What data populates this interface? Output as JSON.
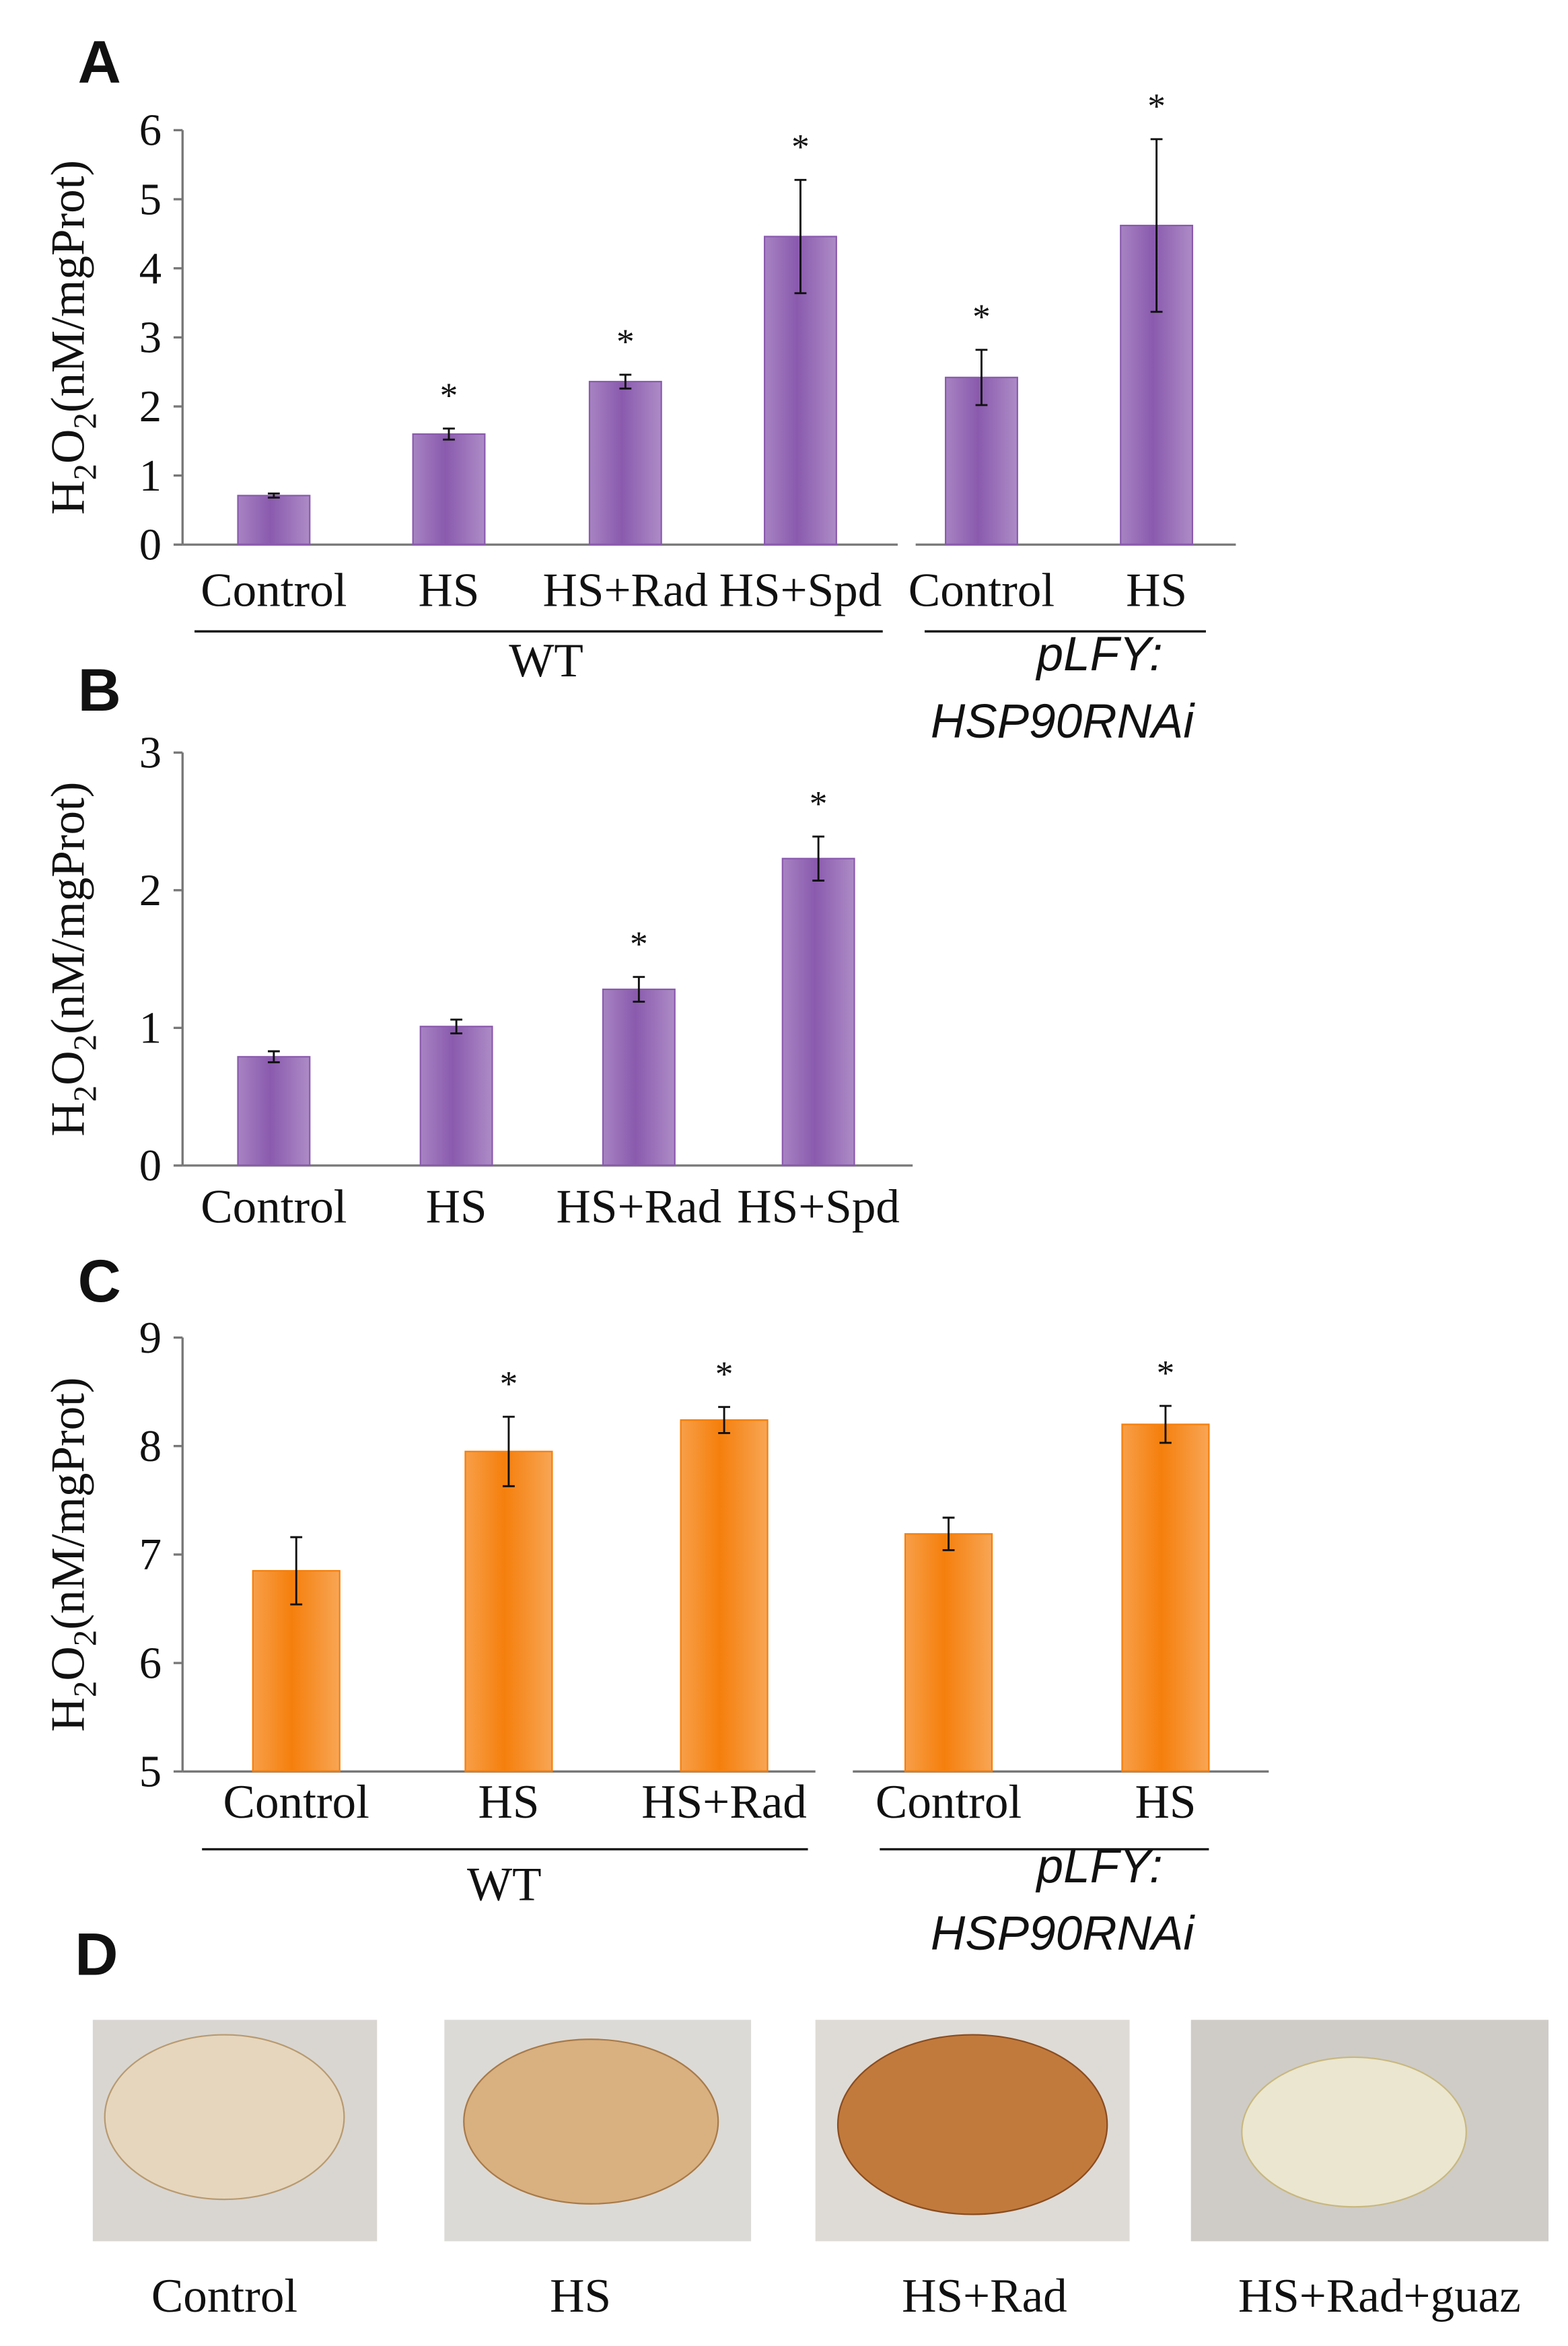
{
  "chart_data": [
    {
      "type": "bar",
      "panel": "A",
      "ylabel": [
        "H",
        "2",
        "O",
        "2",
        "(nM/mgProt)"
      ],
      "groups": [
        {
          "name": [
            "WT"
          ],
          "categories": [
            "Control",
            "HS",
            "HS+Rad",
            "HS+Spd"
          ]
        },
        {
          "name": [
            "pLFY:",
            "HSP90RNAi"
          ],
          "categories": [
            "Control",
            "HS"
          ]
        }
      ],
      "series": [
        {
          "color": "#8a5aae",
          "values": [
            0.71,
            1.6,
            2.36,
            4.46,
            2.42,
            4.62
          ],
          "error": [
            0.03,
            0.08,
            0.1,
            0.82,
            0.4,
            1.25
          ],
          "significance": [
            null,
            "*",
            "*",
            "*",
            "*",
            "*"
          ]
        }
      ],
      "ylim": [
        0,
        6
      ],
      "yticks": [
        0,
        1,
        2,
        3,
        4,
        5,
        6
      ]
    },
    {
      "type": "bar",
      "panel": "B",
      "ylabel": [
        "H",
        "2",
        "O",
        "2",
        "(nM/mgProt)"
      ],
      "groups": [
        {
          "categories": [
            "Control",
            "HS",
            "HS+Rad",
            "HS+Spd"
          ]
        }
      ],
      "series": [
        {
          "color": "#8a5aae",
          "values": [
            0.79,
            1.01,
            1.28,
            2.23
          ],
          "error": [
            0.04,
            0.05,
            0.09,
            0.16
          ],
          "significance": [
            null,
            null,
            "*",
            "*"
          ]
        }
      ],
      "ylim": [
        0,
        3
      ],
      "yticks": [
        0,
        1,
        2,
        3
      ]
    },
    {
      "type": "bar",
      "panel": "C",
      "ylabel": [
        "H",
        "2",
        "O",
        "2",
        "(nM/mgProt)"
      ],
      "groups": [
        {
          "name": [
            "WT"
          ],
          "categories": [
            "Control",
            "HS",
            "HS+Rad"
          ]
        },
        {
          "name": [
            "pLFY:",
            "HSP90RNAi"
          ],
          "categories": [
            "Control",
            "HS"
          ]
        }
      ],
      "series": [
        {
          "color": "#f57f0c",
          "values": [
            6.85,
            7.95,
            8.24,
            7.19,
            8.2
          ],
          "error": [
            0.31,
            0.32,
            0.12,
            0.15,
            0.17
          ],
          "significance": [
            null,
            "*",
            "*",
            null,
            "*"
          ]
        }
      ],
      "ylim": [
        5,
        9
      ],
      "yticks": [
        5,
        6,
        7,
        8,
        9
      ]
    }
  ],
  "panel_d": {
    "panel": "D",
    "captions": [
      "Control",
      "HS",
      "HS+Rad",
      "HS+Rad+guaz"
    ]
  }
}
